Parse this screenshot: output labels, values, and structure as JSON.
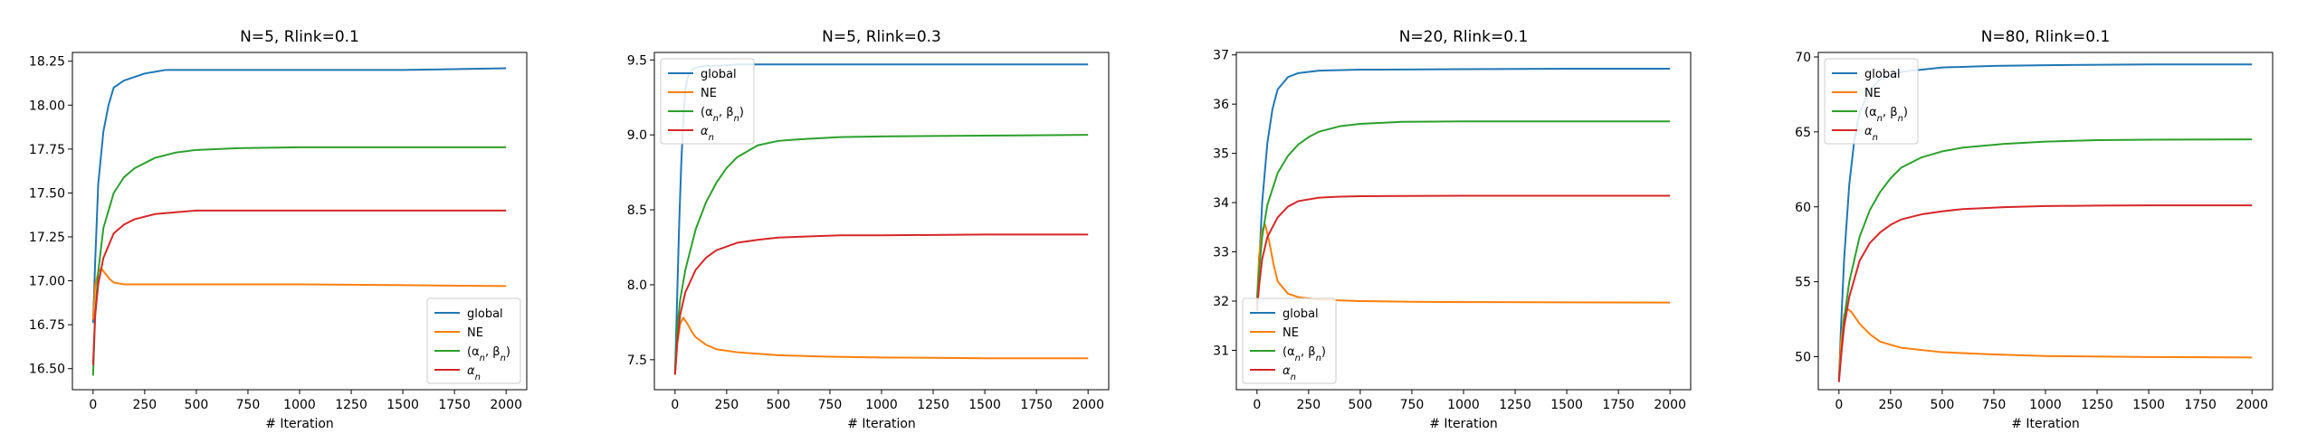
{
  "colors": {
    "global": "#1f77b4",
    "NE": "#ff7f0e",
    "alpha_beta": "#2ca02c",
    "alpha": "#d62728"
  },
  "chart_data": [
    {
      "type": "line",
      "title": "N=5, Rlink=0.1",
      "xlabel": "# Iteration",
      "xlim": [
        -100,
        2100
      ],
      "ylim": [
        16.38,
        18.3
      ],
      "xticks": [
        0,
        250,
        500,
        750,
        1000,
        1250,
        1500,
        1750,
        2000
      ],
      "yticks": [
        16.5,
        16.75,
        17.0,
        17.25,
        17.5,
        17.75,
        18.0,
        18.25
      ],
      "yticklabels": [
        "16.50",
        "16.75",
        "17.00",
        "17.25",
        "17.50",
        "17.75",
        "18.00",
        "18.25"
      ],
      "legend_loc": "lower right",
      "series": [
        {
          "name": "global",
          "color": "#1f77b4",
          "x": [
            0,
            10,
            25,
            50,
            75,
            100,
            150,
            200,
            250,
            300,
            350,
            500,
            1000,
            1500,
            2000
          ],
          "y": [
            16.76,
            17.1,
            17.55,
            17.85,
            18.0,
            18.1,
            18.14,
            18.16,
            18.18,
            18.19,
            18.2,
            18.2,
            18.2,
            18.2,
            18.21
          ]
        },
        {
          "name": "NE",
          "color": "#ff7f0e",
          "x": [
            0,
            10,
            25,
            40,
            60,
            80,
            100,
            150,
            200,
            300,
            500,
            1000,
            1500,
            2000
          ],
          "y": [
            16.78,
            16.97,
            17.05,
            17.07,
            17.04,
            17.01,
            16.99,
            16.98,
            16.98,
            16.98,
            16.98,
            16.98,
            16.975,
            16.97
          ]
        },
        {
          "name": "(α_n, β_n)",
          "color": "#2ca02c",
          "x": [
            0,
            10,
            25,
            50,
            100,
            150,
            200,
            300,
            400,
            500,
            700,
            1000,
            1500,
            2000
          ],
          "y": [
            16.46,
            16.8,
            17.05,
            17.3,
            17.5,
            17.59,
            17.64,
            17.7,
            17.73,
            17.745,
            17.755,
            17.76,
            17.76,
            17.76
          ]
        },
        {
          "name": "α_n",
          "color": "#d62728",
          "x": [
            0,
            10,
            25,
            50,
            100,
            150,
            200,
            300,
            400,
            500,
            700,
            1000,
            1500,
            2000
          ],
          "y": [
            16.52,
            16.8,
            16.98,
            17.13,
            17.27,
            17.32,
            17.35,
            17.38,
            17.39,
            17.4,
            17.4,
            17.4,
            17.4,
            17.4
          ]
        }
      ]
    },
    {
      "type": "line",
      "title": "N=5, Rlink=0.3",
      "xlabel": "# Iteration",
      "xlim": [
        -100,
        2100
      ],
      "ylim": [
        7.3,
        9.55
      ],
      "xticks": [
        0,
        250,
        500,
        750,
        1000,
        1250,
        1500,
        1750,
        2000
      ],
      "yticks": [
        7.5,
        8.0,
        8.5,
        9.0,
        9.5
      ],
      "yticklabels": [
        "7.5",
        "8.0",
        "8.5",
        "9.0",
        "9.5"
      ],
      "legend_loc": "upper left",
      "series": [
        {
          "name": "global",
          "color": "#1f77b4",
          "x": [
            0,
            10,
            20,
            30,
            40,
            50,
            60,
            80,
            100,
            150,
            200,
            300,
            500,
            1000,
            1500,
            2000
          ],
          "y": [
            7.4,
            7.9,
            8.4,
            8.8,
            9.1,
            9.3,
            9.38,
            9.43,
            9.45,
            9.46,
            9.46,
            9.47,
            9.47,
            9.47,
            9.47,
            9.47
          ]
        },
        {
          "name": "NE",
          "color": "#ff7f0e",
          "x": [
            0,
            10,
            25,
            40,
            60,
            80,
            100,
            150,
            200,
            300,
            400,
            500,
            750,
            1000,
            1500,
            2000
          ],
          "y": [
            7.4,
            7.6,
            7.74,
            7.78,
            7.74,
            7.69,
            7.65,
            7.6,
            7.57,
            7.55,
            7.54,
            7.53,
            7.52,
            7.515,
            7.51,
            7.51
          ]
        },
        {
          "name": "(α_n, β_n)",
          "color": "#2ca02c",
          "x": [
            0,
            10,
            25,
            50,
            100,
            150,
            200,
            250,
            300,
            400,
            500,
            600,
            800,
            1000,
            1500,
            2000
          ],
          "y": [
            7.42,
            7.7,
            7.9,
            8.1,
            8.37,
            8.55,
            8.68,
            8.78,
            8.85,
            8.93,
            8.96,
            8.97,
            8.985,
            8.99,
            8.995,
            9.0
          ]
        },
        {
          "name": "α_n",
          "color": "#d62728",
          "x": [
            0,
            10,
            25,
            50,
            100,
            150,
            200,
            300,
            400,
            500,
            600,
            800,
            1000,
            1500,
            2000
          ],
          "y": [
            7.4,
            7.6,
            7.8,
            7.95,
            8.1,
            8.18,
            8.23,
            8.28,
            8.3,
            8.315,
            8.32,
            8.33,
            8.33,
            8.335,
            8.335
          ]
        }
      ]
    },
    {
      "type": "line",
      "title": "N=20, Rlink=0.1",
      "xlabel": "# Iteration",
      "xlim": [
        -100,
        2100
      ],
      "ylim": [
        30.2,
        37.05
      ],
      "xticks": [
        0,
        250,
        500,
        750,
        1000,
        1250,
        1500,
        1750,
        2000
      ],
      "yticks": [
        31,
        32,
        33,
        34,
        35,
        36,
        37
      ],
      "yticklabels": [
        "31",
        "32",
        "33",
        "34",
        "35",
        "36",
        "37"
      ],
      "legend_loc": "lower left",
      "series": [
        {
          "name": "global",
          "color": "#1f77b4",
          "x": [
            0,
            10,
            25,
            50,
            75,
            100,
            150,
            200,
            300,
            500,
            1000,
            1500,
            2000
          ],
          "y": [
            31.9,
            32.7,
            34.0,
            35.2,
            35.9,
            36.3,
            36.55,
            36.63,
            36.68,
            36.7,
            36.71,
            36.72,
            36.72
          ]
        },
        {
          "name": "NE",
          "color": "#ff7f0e",
          "x": [
            0,
            10,
            25,
            40,
            60,
            80,
            100,
            150,
            200,
            300,
            500,
            750,
            1000,
            1500,
            2000
          ],
          "y": [
            32.0,
            32.9,
            33.45,
            33.55,
            33.2,
            32.75,
            32.4,
            32.15,
            32.08,
            32.03,
            32.0,
            31.985,
            31.98,
            31.975,
            31.97
          ]
        },
        {
          "name": "(α_n, β_n)",
          "color": "#2ca02c",
          "x": [
            0,
            10,
            25,
            50,
            100,
            150,
            200,
            250,
            300,
            400,
            500,
            700,
            1000,
            1500,
            2000
          ],
          "y": [
            32.0,
            32.6,
            33.3,
            33.95,
            34.6,
            34.95,
            35.18,
            35.33,
            35.44,
            35.55,
            35.6,
            35.64,
            35.65,
            35.65,
            35.65
          ]
        },
        {
          "name": "α_n",
          "color": "#d62728",
          "x": [
            0,
            10,
            25,
            50,
            100,
            150,
            200,
            300,
            400,
            500,
            700,
            1000,
            1500,
            2000
          ],
          "y": [
            31.8,
            32.3,
            32.85,
            33.3,
            33.7,
            33.92,
            34.03,
            34.1,
            34.12,
            34.13,
            34.135,
            34.14,
            34.14,
            34.14
          ]
        }
      ]
    },
    {
      "type": "line",
      "title": "N=80, Rlink=0.1",
      "xlabel": "# Iteration",
      "xlim": [
        -100,
        2100
      ],
      "ylim": [
        47.8,
        70.3
      ],
      "xticks": [
        0,
        250,
        500,
        750,
        1000,
        1250,
        1500,
        1750,
        2000
      ],
      "yticks": [
        50,
        55,
        60,
        65,
        70
      ],
      "yticklabels": [
        "50",
        "55",
        "60",
        "65",
        "70"
      ],
      "legend_loc": "upper left",
      "series": [
        {
          "name": "global",
          "color": "#1f77b4",
          "x": [
            0,
            10,
            25,
            50,
            75,
            100,
            150,
            200,
            300,
            500,
            750,
            1000,
            1500,
            2000
          ],
          "y": [
            48.5,
            52.0,
            56.5,
            61.5,
            64.5,
            66.3,
            67.8,
            68.5,
            69.0,
            69.3,
            69.4,
            69.45,
            69.5,
            69.5
          ]
        },
        {
          "name": "NE",
          "color": "#ff7f0e",
          "x": [
            0,
            10,
            25,
            40,
            60,
            80,
            100,
            150,
            200,
            300,
            500,
            750,
            1000,
            1500,
            2000
          ],
          "y": [
            48.5,
            51.0,
            52.8,
            53.2,
            53.0,
            52.6,
            52.2,
            51.5,
            51.0,
            50.6,
            50.3,
            50.15,
            50.05,
            49.98,
            49.95
          ]
        },
        {
          "name": "(α_n, β_n)",
          "color": "#2ca02c",
          "x": [
            0,
            10,
            25,
            50,
            100,
            150,
            200,
            250,
            300,
            400,
            500,
            600,
            800,
            1000,
            1250,
            1500,
            2000
          ],
          "y": [
            48.5,
            50.0,
            52.5,
            55.0,
            58.0,
            59.8,
            61.0,
            61.9,
            62.6,
            63.3,
            63.7,
            63.95,
            64.2,
            64.35,
            64.45,
            64.48,
            64.5
          ]
        },
        {
          "name": "α_n",
          "color": "#d62728",
          "x": [
            0,
            10,
            25,
            50,
            100,
            150,
            200,
            250,
            300,
            400,
            500,
            600,
            800,
            1000,
            1250,
            1500,
            2000
          ],
          "y": [
            48.3,
            50.0,
            52.0,
            54.0,
            56.4,
            57.6,
            58.3,
            58.8,
            59.15,
            59.5,
            59.7,
            59.85,
            59.98,
            60.05,
            60.08,
            60.1,
            60.1
          ]
        }
      ]
    }
  ]
}
